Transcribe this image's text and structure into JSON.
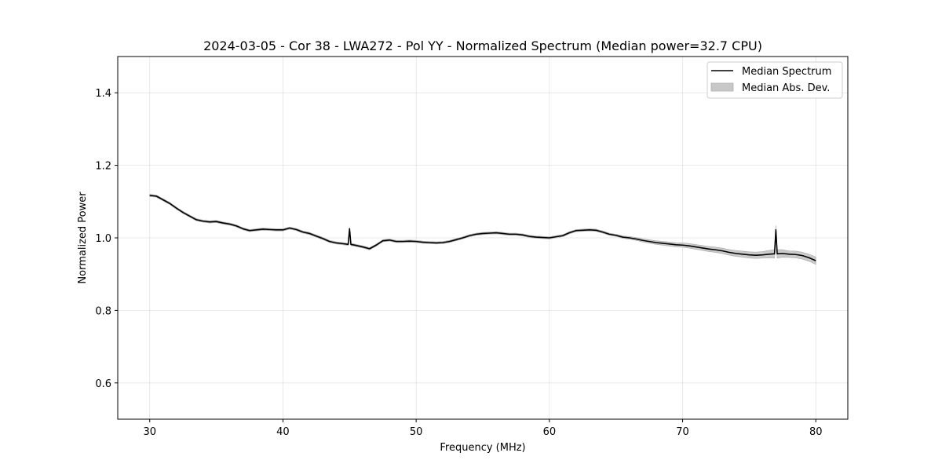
{
  "chart_data": {
    "type": "line",
    "title": "2024-03-05 - Cor 38 - LWA272 - Pol YY - Normalized Spectrum (Median power=32.7 CPU)",
    "xlabel": "Frequency (MHz)",
    "ylabel": "Normalized Power",
    "xlim": [
      27.6,
      82.4
    ],
    "ylim": [
      0.5,
      1.5
    ],
    "xticks": [
      30,
      40,
      50,
      60,
      70,
      80
    ],
    "yticks": [
      0.6,
      0.8,
      1.0,
      1.2,
      1.4
    ],
    "xtick_labels": [
      "30",
      "40",
      "50",
      "60",
      "70",
      "80"
    ],
    "ytick_labels": [
      "0.6",
      "0.8",
      "1.0",
      "1.2",
      "1.4"
    ],
    "grid": true,
    "legend_position": "top-right",
    "series": [
      {
        "name": "Median Spectrum",
        "color": "#000000",
        "x": [
          30.0,
          30.5,
          31.0,
          31.5,
          32.0,
          32.5,
          33.0,
          33.5,
          34.0,
          34.5,
          35.0,
          35.5,
          36.0,
          36.5,
          37.0,
          37.5,
          38.0,
          38.5,
          39.0,
          39.5,
          40.0,
          40.5,
          41.0,
          41.5,
          42.0,
          42.5,
          43.0,
          43.5,
          44.0,
          44.5,
          44.9,
          45.0,
          45.1,
          45.5,
          46.0,
          46.5,
          47.0,
          47.5,
          48.0,
          48.5,
          49.0,
          49.5,
          50.0,
          50.5,
          51.0,
          51.5,
          52.0,
          52.5,
          53.0,
          53.5,
          54.0,
          54.5,
          55.0,
          55.5,
          56.0,
          56.5,
          57.0,
          57.5,
          58.0,
          58.5,
          59.0,
          59.5,
          60.0,
          60.5,
          61.0,
          61.5,
          62.0,
          62.5,
          63.0,
          63.5,
          64.0,
          64.5,
          65.0,
          65.5,
          66.0,
          66.5,
          67.0,
          67.5,
          68.0,
          68.5,
          69.0,
          69.5,
          70.0,
          70.5,
          71.0,
          71.5,
          72.0,
          72.5,
          73.0,
          73.5,
          74.0,
          74.5,
          75.0,
          75.5,
          76.0,
          76.5,
          76.9,
          77.0,
          77.1,
          77.5,
          78.0,
          78.5,
          79.0,
          79.5,
          80.0
        ],
        "values": [
          1.117,
          1.115,
          1.105,
          1.095,
          1.082,
          1.07,
          1.06,
          1.05,
          1.046,
          1.044,
          1.045,
          1.041,
          1.038,
          1.033,
          1.025,
          1.02,
          1.022,
          1.024,
          1.023,
          1.022,
          1.022,
          1.027,
          1.023,
          1.016,
          1.012,
          1.005,
          0.998,
          0.99,
          0.986,
          0.984,
          0.982,
          1.025,
          0.982,
          0.979,
          0.975,
          0.97,
          0.98,
          0.992,
          0.994,
          0.99,
          0.99,
          0.991,
          0.99,
          0.988,
          0.987,
          0.986,
          0.987,
          0.99,
          0.995,
          1.0,
          1.006,
          1.01,
          1.012,
          1.013,
          1.014,
          1.012,
          1.01,
          1.01,
          1.008,
          1.004,
          1.002,
          1.001,
          1.0,
          1.003,
          1.006,
          1.014,
          1.02,
          1.021,
          1.022,
          1.021,
          1.016,
          1.01,
          1.007,
          1.002,
          1.0,
          0.997,
          0.993,
          0.99,
          0.987,
          0.985,
          0.983,
          0.981,
          0.98,
          0.978,
          0.975,
          0.972,
          0.969,
          0.967,
          0.964,
          0.96,
          0.957,
          0.955,
          0.953,
          0.952,
          0.953,
          0.955,
          0.956,
          1.022,
          0.956,
          0.957,
          0.955,
          0.954,
          0.951,
          0.945,
          0.937
        ]
      },
      {
        "name": "Median Abs. Dev.",
        "color": "#c8c8c8",
        "x": [
          30.0,
          35.0,
          40.0,
          45.0,
          50.0,
          55.0,
          60.0,
          65.0,
          68.0,
          70.0,
          72.0,
          74.0,
          76.0,
          77.0,
          78.0,
          80.0
        ],
        "values": [
          0.003,
          0.003,
          0.003,
          0.003,
          0.003,
          0.003,
          0.003,
          0.003,
          0.005,
          0.006,
          0.007,
          0.008,
          0.009,
          0.012,
          0.009,
          0.01
        ]
      }
    ]
  }
}
